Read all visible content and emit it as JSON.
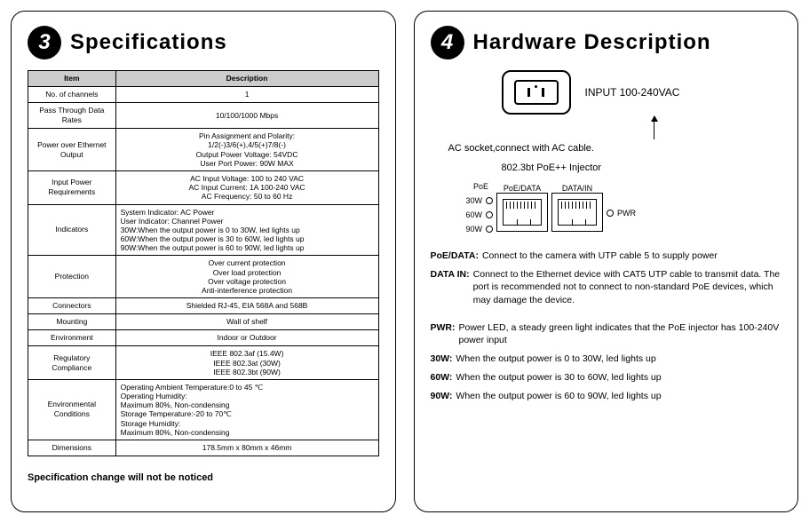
{
  "left": {
    "badge": "3",
    "title": "Specifications",
    "table": {
      "header": [
        "Item",
        "Description"
      ],
      "rows": [
        {
          "label": "No. of channels",
          "desc": "1"
        },
        {
          "label": "Pass Through Data Rates",
          "desc": "10/100/1000 Mbps"
        },
        {
          "label": "Power over Ethernet Output",
          "desc": [
            "Pin Assignment and Polarity:",
            "1/2(-)3/6(+),4/5(+)7/8(-)",
            "Output Power Voltage: 54VDC",
            "User Port Power: 90W MAX"
          ]
        },
        {
          "label": "Input Power Requirements",
          "desc": [
            "AC Input Voltage: 100 to 240 VAC",
            "AC Input Current: 1A 100-240 VAC",
            "AC Frequency: 50 to 60 Hz"
          ]
        },
        {
          "label": "Indicators",
          "desc": [
            "System Indicator: AC Power",
            "User Indicator: Channel Power",
            "30W:When the output power is 0 to 30W, led lights up",
            "60W:When the output power is 30 to 60W, led lights up",
            "90W:When the output power is 60 to 90W, led lights up"
          ],
          "align": "left"
        },
        {
          "label": "Protection",
          "desc": [
            "Over current protection",
            "Over load protection",
            "Over voltage protection",
            "Anti-interference protection"
          ]
        },
        {
          "label": "Connectors",
          "desc": "Shielded RJ-45, EIA 568A and 568B"
        },
        {
          "label": "Mounting",
          "desc": "Wall of shelf"
        },
        {
          "label": "Environment",
          "desc": "Indoor or Outdoor"
        },
        {
          "label": "Regulatory Compliance",
          "desc": [
            "IEEE 802.3af (15.4W)",
            "IEEE 802.3at (30W)",
            "IEEE 802.3bt (90W)"
          ]
        },
        {
          "label": "Environmental Conditions",
          "desc": [
            "Operating Ambient Temperature:0 to 45 ℃",
            "Operating Humidity:",
            "Maximum 80%, Non-condensing",
            "Storage Temperature:-20 to 70℃",
            "Storage Humidity:",
            "Maximum 80%, Non-condensing"
          ],
          "align": "left"
        },
        {
          "label": "Dimensions",
          "desc": "178.5mm x 80mm x 46mm"
        }
      ]
    },
    "footnote": "Specification change will not be noticed"
  },
  "right": {
    "badge": "4",
    "title": "Hardware Description",
    "socket_label": "INPUT 100-240VAC",
    "arrow_text": "AC socket,connect with AC cable.",
    "device_label": "802.3bt PoE++ Injector",
    "poe_label": "PoE",
    "leds": [
      "30W",
      "60W",
      "90W"
    ],
    "ports": [
      "PoE/DATA",
      "DATA/IN"
    ],
    "pwr_label": "PWR",
    "descriptions": [
      {
        "b": "PoE/DATA:",
        "t": "Connect to the camera with UTP cable 5 to supply power"
      },
      {
        "b": "DATA IN:",
        "t": "Connect to the Ethernet device with CAT5 UTP cable to transmit data. The port is recommended not to connect to non-standard PoE devices, which may damage the device."
      },
      {
        "b": "PWR:",
        "t": "Power LED, a steady green light indicates that the PoE injector has 100-240V power input"
      },
      {
        "b": "30W:",
        "t": "When the output power is 0 to 30W, led lights up"
      },
      {
        "b": "60W:",
        "t": "When the output power is 30 to 60W, led lights up"
      },
      {
        "b": "90W:",
        "t": "When the output power is 60 to 90W, led lights up"
      }
    ]
  }
}
